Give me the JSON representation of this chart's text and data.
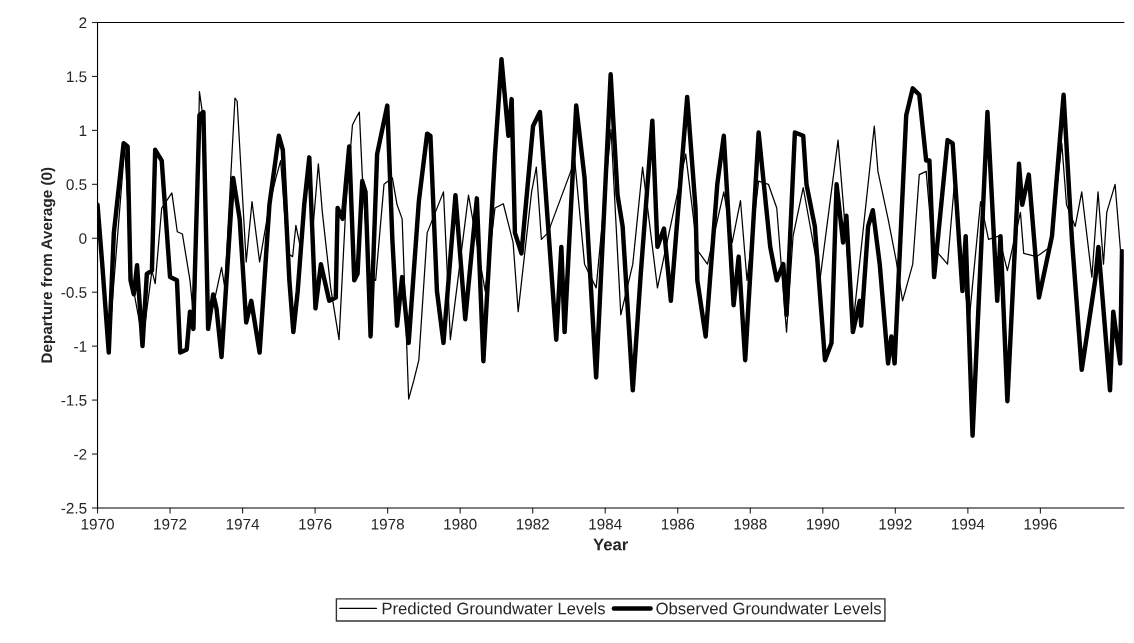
{
  "chart_data": {
    "type": "line",
    "xlabel": "Year",
    "ylabel": "Departure from Average (0)",
    "xlim": [
      1970,
      1998.3
    ],
    "xticks": [
      1970,
      1972,
      1974,
      1976,
      1978,
      1980,
      1982,
      1984,
      1986,
      1988,
      1990,
      1992,
      1994,
      1996
    ],
    "ylim": [
      -2.5,
      2
    ],
    "yticks": [
      {
        "value": 2,
        "label": "2"
      },
      {
        "value": 1.5,
        "label": "1.5"
      },
      {
        "value": 1,
        "label": "1"
      },
      {
        "value": 0.5,
        "label": "0.5"
      },
      {
        "value": 0,
        "label": "0"
      },
      {
        "value": -0.5,
        "label": "-0.5"
      },
      {
        "value": -1,
        "label": "-1"
      },
      {
        "value": -1.5,
        "label": "-1.5"
      },
      {
        "value": -2,
        "label": "-2"
      },
      {
        "value": -2.5,
        "label": "-2.5"
      }
    ],
    "grid": false,
    "legend": "bottom",
    "marker": "none",
    "line_style": "solid",
    "series": [
      {
        "name": "Predicted Groundwater Levels",
        "color": "#000000",
        "x": [
          1970.0,
          1970.31,
          1970.75,
          1970.95,
          1971.25,
          1971.5,
          1971.59,
          1971.77,
          1972.05,
          1972.2,
          1972.34,
          1972.55,
          1972.68,
          1972.81,
          1972.92,
          1973.05,
          1973.24,
          1973.42,
          1973.51,
          1973.79,
          1973.85,
          1974.1,
          1974.26,
          1974.47,
          1974.74,
          1974.92,
          1975.05,
          1975.24,
          1975.38,
          1975.47,
          1975.61,
          1975.84,
          1975.93,
          1976.09,
          1976.2,
          1976.43,
          1976.66,
          1976.85,
          1977.03,
          1977.12,
          1977.22,
          1977.3,
          1977.49,
          1977.67,
          1977.9,
          1978.13,
          1978.26,
          1978.4,
          1978.58,
          1978.72,
          1978.86,
          1979.09,
          1979.54,
          1979.73,
          1980.23,
          1980.69,
          1980.96,
          1981.19,
          1981.46,
          1981.6,
          1981.97,
          1982.1,
          1982.24,
          1982.42,
          1983.16,
          1983.43,
          1983.75,
          1984.16,
          1984.43,
          1984.76,
          1985.03,
          1985.44,
          1986.22,
          1986.54,
          1986.82,
          1987.27,
          1987.5,
          1987.73,
          1987.91,
          1988.23,
          1988.5,
          1988.73,
          1989.0,
          1989.18,
          1989.46,
          1989.92,
          1990.42,
          1990.56,
          1990.83,
          1991.42,
          1991.52,
          1991.8,
          1992.02,
          1992.2,
          1992.48,
          1992.66,
          1992.85,
          1993.03,
          1993.44,
          1993.62,
          1994.03,
          1994.35,
          1994.57,
          1994.85,
          1995.09,
          1995.45,
          1995.54,
          1995.9,
          1996.27,
          1996.59,
          1996.72,
          1996.96,
          1997.14,
          1997.42,
          1997.59,
          1997.74,
          1997.83,
          1998.06,
          1998.24
        ],
        "values": [
          0.3,
          -1.0,
          0.85,
          -0.4,
          -0.95,
          -0.3,
          -0.42,
          0.28,
          0.42,
          0.06,
          0.04,
          -0.39,
          -0.84,
          1.36,
          1.1,
          -0.81,
          -0.55,
          -0.27,
          -0.46,
          1.3,
          1.27,
          -0.22,
          0.34,
          -0.22,
          0.31,
          0.56,
          0.72,
          -0.14,
          -0.17,
          0.12,
          -0.11,
          0.75,
          0.05,
          0.69,
          0.24,
          -0.46,
          -0.94,
          0.31,
          1.05,
          1.11,
          1.17,
          0.59,
          -0.36,
          -0.39,
          0.5,
          0.56,
          0.31,
          0.18,
          -1.49,
          -1.32,
          -1.13,
          0.05,
          0.43,
          -0.94,
          0.4,
          -0.49,
          0.28,
          0.32,
          -0.04,
          -0.68,
          0.43,
          0.66,
          -0.01,
          0.05,
          0.72,
          -0.24,
          -0.46,
          1.01,
          -0.71,
          -0.24,
          0.66,
          -0.46,
          0.78,
          -0.11,
          -0.24,
          0.43,
          -0.04,
          0.35,
          -0.39,
          0.53,
          0.5,
          0.28,
          -0.87,
          0.02,
          0.47,
          -0.39,
          0.91,
          0.34,
          -0.81,
          1.04,
          0.62,
          0.18,
          -0.2,
          -0.58,
          -0.24,
          0.59,
          0.62,
          -0.08,
          -0.24,
          0.47,
          -0.78,
          0.34,
          -0.01,
          0.02,
          -0.3,
          0.24,
          -0.14,
          -0.17,
          -0.08,
          0.88,
          0.31,
          0.11,
          0.43,
          -0.36,
          0.43,
          -0.24,
          0.24,
          0.5,
          -0.24
        ]
      },
      {
        "name": "Observed Groundwater Levels",
        "color": "#000000",
        "x": [
          1970.0,
          1970.13,
          1970.31,
          1970.45,
          1970.72,
          1970.83,
          1970.91,
          1971.0,
          1971.09,
          1971.24,
          1971.36,
          1971.5,
          1971.59,
          1971.77,
          1972.0,
          1972.19,
          1972.28,
          1972.46,
          1972.55,
          1972.64,
          1972.81,
          1972.92,
          1973.05,
          1973.19,
          1973.28,
          1973.42,
          1973.74,
          1973.92,
          1974.1,
          1974.24,
          1974.47,
          1974.74,
          1975.0,
          1975.11,
          1975.29,
          1975.4,
          1975.52,
          1975.7,
          1975.84,
          1976.01,
          1976.16,
          1976.39,
          1976.57,
          1976.62,
          1976.76,
          1976.94,
          1977.08,
          1977.17,
          1977.3,
          1977.39,
          1977.53,
          1977.71,
          1977.99,
          1978.13,
          1978.26,
          1978.4,
          1978.58,
          1978.86,
          1979.09,
          1979.18,
          1979.36,
          1979.54,
          1979.87,
          1980.14,
          1980.46,
          1980.64,
          1980.96,
          1981.14,
          1981.33,
          1981.42,
          1981.51,
          1981.69,
          1982.01,
          1982.2,
          1982.33,
          1982.65,
          1982.79,
          1982.88,
          1983.2,
          1983.43,
          1983.75,
          1984.15,
          1984.34,
          1984.48,
          1984.76,
          1984.98,
          1985.3,
          1985.44,
          1985.62,
          1985.81,
          1986.26,
          1986.49,
          1986.54,
          1986.77,
          1987.09,
          1987.27,
          1987.54,
          1987.68,
          1987.86,
          1988.23,
          1988.55,
          1988.73,
          1988.91,
          1989.0,
          1989.23,
          1989.46,
          1989.55,
          1989.78,
          1990.06,
          1990.24,
          1990.38,
          1990.56,
          1990.65,
          1990.83,
          1991.02,
          1991.06,
          1991.25,
          1991.38,
          1991.57,
          1991.8,
          1991.89,
          1991.98,
          1992.3,
          1992.48,
          1992.66,
          1992.85,
          1992.94,
          1993.07,
          1993.44,
          1993.58,
          1993.85,
          1993.94,
          1994.13,
          1994.54,
          1994.81,
          1994.9,
          1995.09,
          1995.41,
          1995.5,
          1995.68,
          1995.96,
          1996.32,
          1996.64,
          1996.87,
          1997.14,
          1997.51,
          1997.6,
          1997.92,
          1998.01,
          1998.2,
          1998.25
        ],
        "values": [
          0.31,
          -0.24,
          -1.06,
          0.05,
          0.88,
          0.85,
          -0.39,
          -0.52,
          -0.25,
          -1.0,
          -0.33,
          -0.3,
          0.82,
          0.72,
          -0.36,
          -0.39,
          -1.06,
          -1.03,
          -0.68,
          -0.84,
          1.14,
          1.17,
          -0.84,
          -0.52,
          -0.65,
          -1.1,
          0.56,
          0.18,
          -0.78,
          -0.58,
          -1.06,
          0.31,
          0.95,
          0.82,
          -0.39,
          -0.87,
          -0.49,
          0.31,
          0.75,
          -0.65,
          -0.24,
          -0.58,
          -0.55,
          0.28,
          0.18,
          0.85,
          -0.39,
          -0.33,
          0.53,
          0.43,
          -0.91,
          0.78,
          1.23,
          -0.01,
          -0.81,
          -0.36,
          -0.97,
          0.34,
          0.97,
          0.95,
          -0.49,
          -0.97,
          0.4,
          -0.75,
          0.37,
          -1.14,
          0.78,
          1.66,
          0.95,
          1.29,
          0.05,
          -0.14,
          1.04,
          1.17,
          0.56,
          -0.94,
          -0.08,
          -0.87,
          1.23,
          0.56,
          -1.29,
          1.52,
          0.4,
          0.11,
          -1.41,
          -0.33,
          1.09,
          -0.08,
          0.09,
          -0.58,
          1.31,
          0.28,
          -0.39,
          -0.91,
          0.5,
          0.95,
          -0.62,
          -0.17,
          -1.13,
          0.98,
          -0.08,
          -0.39,
          -0.24,
          -0.71,
          0.98,
          0.95,
          0.5,
          0.11,
          -1.13,
          -0.97,
          0.5,
          -0.04,
          0.21,
          -0.87,
          -0.58,
          -0.81,
          0.11,
          0.26,
          -0.24,
          -1.16,
          -0.91,
          -1.16,
          1.14,
          1.39,
          1.33,
          0.72,
          0.72,
          -0.36,
          0.91,
          0.88,
          -0.49,
          0.02,
          -1.83,
          1.17,
          -0.58,
          0.02,
          -1.51,
          0.69,
          0.31,
          0.59,
          -0.55,
          0.02,
          1.33,
          -0.01,
          -1.22,
          -0.39,
          -0.08,
          -1.41,
          -0.68,
          -1.16,
          -0.12
        ]
      }
    ]
  }
}
